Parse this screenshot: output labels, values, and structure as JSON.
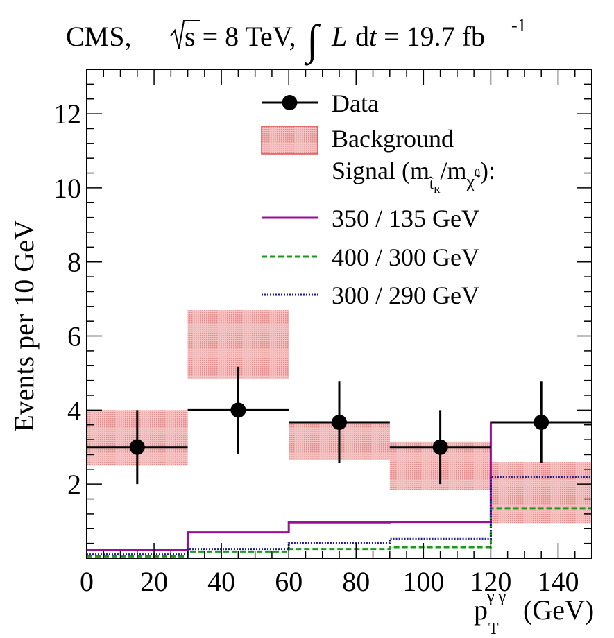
{
  "chart_data": {
    "type": "histogram",
    "title": {
      "experiment": "CMS,",
      "sqrt_s": "√s = 8 TeV,",
      "lumi": "L dt = 19.7 fb",
      "lumi_exp": "-1"
    },
    "xlabel": {
      "main": "p",
      "sup": "γ γ",
      "sub": "T",
      "unit": "(GeV)"
    },
    "ylabel": "Events per 10 GeV",
    "xlim": [
      0,
      150
    ],
    "ylim": [
      0,
      13.2
    ],
    "xticks": [
      0,
      20,
      40,
      60,
      80,
      100,
      120,
      140
    ],
    "xtick_labels": [
      "0",
      "20",
      "40",
      "60",
      "80",
      "100",
      "120",
      "140"
    ],
    "yticks": [
      2,
      4,
      6,
      8,
      10,
      12
    ],
    "ytick_labels": [
      "2",
      "4",
      "6",
      "8",
      "10",
      "12"
    ],
    "bin_edges": [
      0,
      30,
      60,
      90,
      120,
      150
    ],
    "data": {
      "name": "Data",
      "x": [
        15,
        45,
        75,
        105,
        135
      ],
      "y": [
        3,
        4,
        3.67,
        3,
        3.67
      ],
      "xerr": [
        15,
        15,
        15,
        15,
        15
      ],
      "yerr_low": [
        1.0,
        1.17,
        1.1,
        1.0,
        1.1
      ],
      "yerr_high": [
        1.0,
        1.17,
        1.1,
        1.0,
        1.1
      ]
    },
    "background": {
      "name": "Background",
      "low": [
        2.5,
        4.85,
        2.65,
        1.85,
        0.95
      ],
      "high": [
        4.0,
        6.7,
        3.7,
        3.15,
        2.6
      ],
      "color": "#d9534f"
    },
    "signal_header": "Signal (m",
    "signal_header_sub1": "t̃",
    "signal_header_sub1b": "R",
    "signal_header_mid": "/m",
    "signal_header_sub2": "χ̃",
    "signal_header_sup2": "0",
    "signal_header_end": "):",
    "series": [
      {
        "name": "350 / 135 GeV",
        "values": [
          0.22,
          0.7,
          0.97,
          0.98,
          3.67
        ],
        "color": "#9a0e9a",
        "style": "solid"
      },
      {
        "name": "400 / 300 GeV",
        "values": [
          0.05,
          0.18,
          0.25,
          0.3,
          1.35
        ],
        "color": "#1a9a1a",
        "style": "dashed"
      },
      {
        "name": "300 / 290 GeV",
        "values": [
          0.1,
          0.25,
          0.42,
          0.52,
          2.2
        ],
        "color": "#1a1a9a",
        "style": "dotted"
      }
    ],
    "legend_placement": "top-right"
  }
}
